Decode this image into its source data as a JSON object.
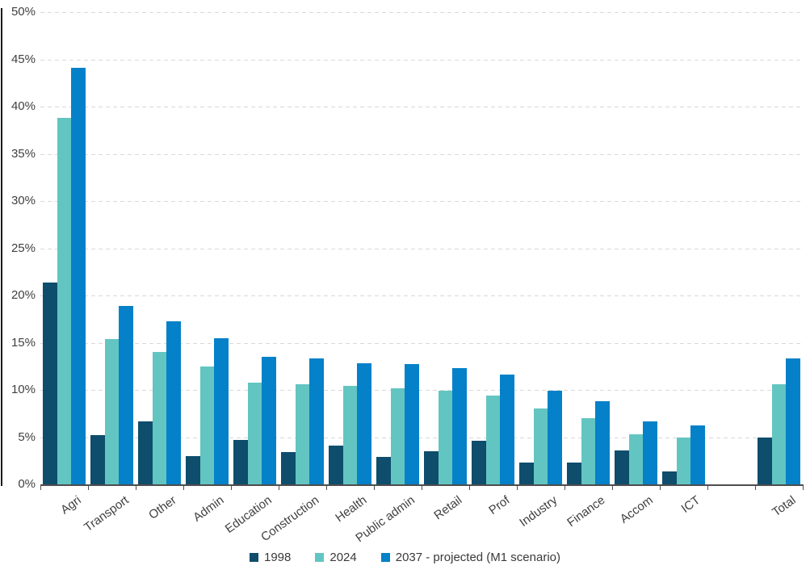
{
  "chart_data": {
    "type": "bar",
    "title": "",
    "categories": [
      "Agri",
      "Transport",
      "Other",
      "Admin",
      "Education",
      "Construction",
      "Health",
      "Public admin",
      "Retail",
      "Prof",
      "Industry",
      "Finance",
      "Accom",
      "ICT",
      "Total"
    ],
    "series": [
      {
        "name": "1998",
        "color": "#0E4D6C",
        "values": [
          21.4,
          5.2,
          6.7,
          3.0,
          4.7,
          3.4,
          4.1,
          2.9,
          3.5,
          4.6,
          2.3,
          2.3,
          3.6,
          1.4,
          5.0
        ]
      },
      {
        "name": "2024",
        "color": "#63C5C1",
        "values": [
          38.8,
          15.4,
          14.0,
          12.5,
          10.8,
          10.6,
          10.4,
          10.2,
          9.9,
          9.4,
          8.0,
          7.0,
          5.3,
          5.0,
          10.6
        ]
      },
      {
        "name": "2037 - projected (M1 scenario)",
        "color": "#0481C8",
        "values": [
          44.1,
          18.9,
          17.3,
          15.5,
          13.5,
          13.3,
          12.8,
          12.7,
          12.3,
          11.6,
          9.9,
          8.8,
          6.7,
          6.2,
          13.3
        ]
      }
    ],
    "y_axis": {
      "min": 0,
      "max": 50,
      "step": 5,
      "tick_labels": [
        "0%",
        "5%",
        "10%",
        "15%",
        "20%",
        "25%",
        "30%",
        "35%",
        "40%",
        "45%",
        "50%"
      ]
    },
    "xlabel": "",
    "ylabel": "",
    "grid": "horizontal-dashed",
    "gridline_color": "#d9d9d9",
    "axis_text_color": "#404040",
    "legend_position": "bottom",
    "gap_before_last_category": true,
    "background_color": "#ffffff"
  }
}
